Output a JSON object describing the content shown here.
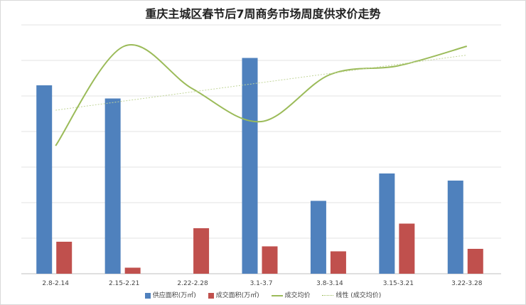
{
  "chart_data": {
    "type": "bar",
    "title": "重庆主城区春节后7周商务市场周度供求价走势",
    "categories": [
      "2.8-2.14",
      "2.15-2.21",
      "2.22-2.28",
      "3.1-3.7",
      "3.8-3.14",
      "3.15-3.21",
      "3.22-3.28"
    ],
    "ylim": [
      0,
      7
    ],
    "grid": true,
    "legend_position": "bottom",
    "series": [
      {
        "name": "供应面积(万㎡)",
        "kind": "bar",
        "color": "#4f81bd",
        "values": [
          5.3,
          4.93,
          0,
          6.07,
          2.05,
          2.82,
          2.62
        ]
      },
      {
        "name": "成交面积(万㎡)",
        "kind": "bar",
        "color": "#c0504d",
        "values": [
          0.9,
          0.17,
          1.28,
          0.77,
          0.63,
          1.41,
          0.7
        ]
      },
      {
        "name": "成交均价",
        "kind": "line",
        "smooth": true,
        "color": "#9bbb59",
        "values": [
          3.6,
          6.4,
          5.2,
          4.28,
          5.6,
          5.85,
          6.4
        ]
      },
      {
        "name": "线性 (成交均价)",
        "kind": "trendline",
        "color": "#c3d69b",
        "values": [
          4.6,
          4.87,
          5.13,
          5.38,
          5.64,
          5.9,
          6.15
        ]
      }
    ]
  }
}
